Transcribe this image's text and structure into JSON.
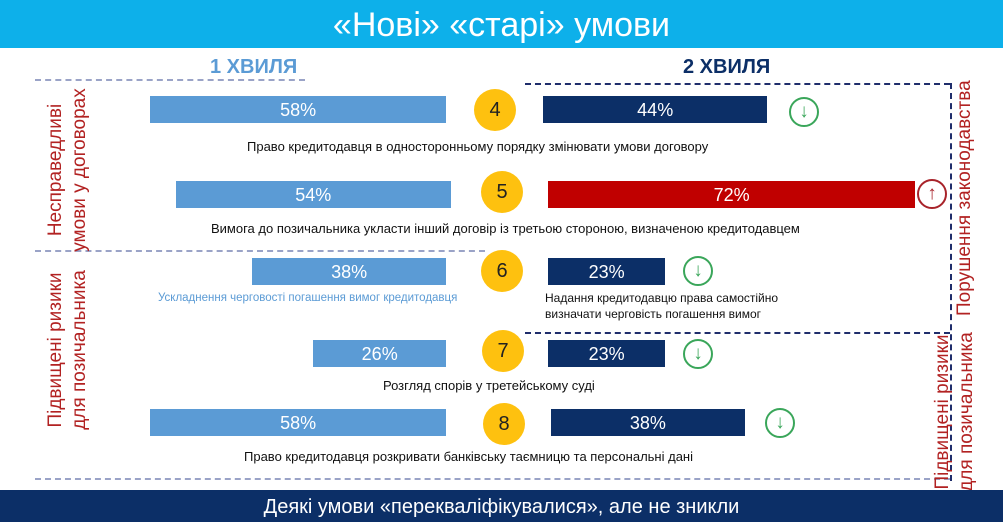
{
  "header": {
    "title": "«Нові» «старі» умови"
  },
  "waves": {
    "w1": "1 ХВИЛЯ",
    "w2": "2 ХВИЛЯ"
  },
  "side_labels": {
    "left_top": [
      "Несправедливі",
      "умови у договорах"
    ],
    "left_bottom": [
      "Підвищені ризики",
      "для позичальника"
    ],
    "right_top": "Порушення законодавства",
    "right_bottom": [
      "Підвищені ризики",
      "для позичальника"
    ]
  },
  "colors": {
    "wave1": "#5b9bd5",
    "wave2": "#0c2f67",
    "increase": "#c00000",
    "circle": "#fec10f",
    "header": "#0db0ea"
  },
  "rows": [
    {
      "num": "4",
      "w1": "58%",
      "w2": "44%",
      "trend": "↓",
      "caption": "Право кредитодавця в односторонньому порядку змінювати умови договору"
    },
    {
      "num": "5",
      "w1": "54%",
      "w2": "72%",
      "trend": "↑",
      "caption": "Вимога до позичальника укласти інший договір із третьою  стороною, визначеною кредитодавцем"
    },
    {
      "num": "6",
      "w1": "38%",
      "w2": "23%",
      "trend": "↓",
      "caption_w1": "Ускладнення черговості погашення вимог кредитодавця",
      "caption_w2": [
        "Надання кредитодавцю права самостійно",
        "визначати черговість погашення вимог"
      ]
    },
    {
      "num": "7",
      "w1": "26%",
      "w2": "23%",
      "trend": "↓",
      "caption": "Розгляд спорів у третейському суді"
    },
    {
      "num": "8",
      "w1": "58%",
      "w2": "38%",
      "trend": "↓",
      "caption": "Право кредитодавця розкривати банківську таємницю та  персональні дані"
    }
  ],
  "chart_data": {
    "type": "bar",
    "categories": [
      "4",
      "5",
      "6",
      "7",
      "8"
    ],
    "series": [
      {
        "name": "1 ХВИЛЯ",
        "values": [
          58,
          54,
          38,
          26,
          58
        ]
      },
      {
        "name": "2 ХВИЛЯ",
        "values": [
          44,
          72,
          23,
          23,
          38
        ]
      }
    ],
    "unit": "%"
  },
  "footer": {
    "text": "Деякі умови «перекваліфікувалися», але не зникли"
  }
}
